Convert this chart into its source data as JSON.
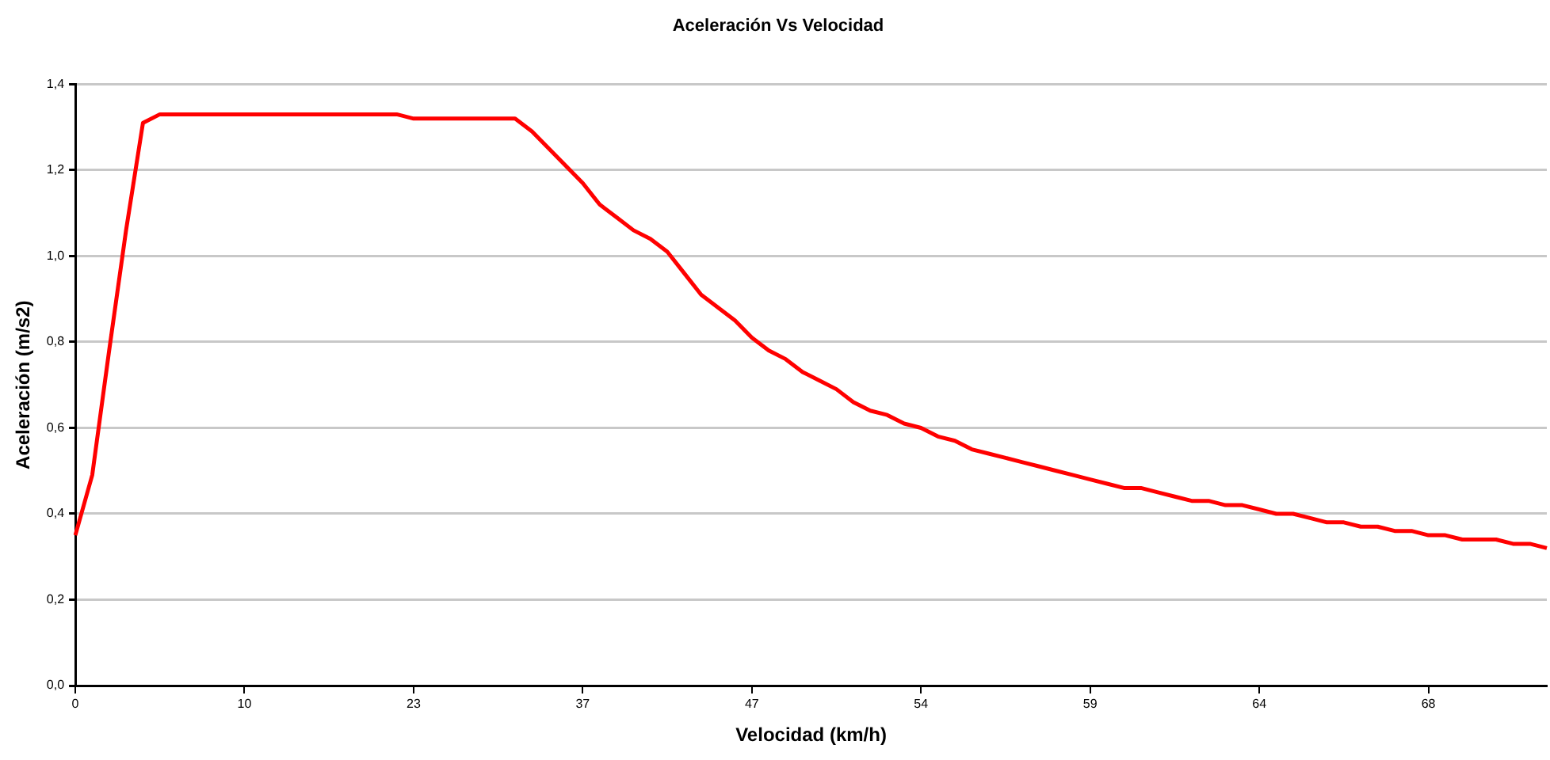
{
  "chart_data": {
    "type": "line",
    "title": "Aceleración Vs Velocidad",
    "xlabel": "Velocidad (km/h)",
    "ylabel": "Aceleración (m/s2)",
    "categories": [
      "0",
      null,
      null,
      null,
      null,
      null,
      null,
      null,
      null,
      null,
      "10",
      null,
      null,
      null,
      null,
      null,
      null,
      null,
      null,
      null,
      "23",
      null,
      null,
      null,
      null,
      null,
      null,
      null,
      null,
      null,
      "37",
      null,
      null,
      null,
      null,
      null,
      null,
      null,
      null,
      null,
      "47",
      null,
      null,
      null,
      null,
      null,
      null,
      null,
      null,
      null,
      "54",
      null,
      null,
      null,
      null,
      null,
      null,
      null,
      null,
      null,
      "59",
      null,
      null,
      null,
      null,
      null,
      null,
      null,
      null,
      null,
      "64",
      null,
      null,
      null,
      null,
      null,
      null,
      null,
      null,
      null,
      "68",
      null,
      null,
      null,
      null,
      null,
      null,
      null
    ],
    "series": [
      {
        "color": "#ff0000",
        "values": [
          0.35,
          0.49,
          0.78,
          1.06,
          1.31,
          1.33,
          1.33,
          1.33,
          1.33,
          1.33,
          1.33,
          1.33,
          1.33,
          1.33,
          1.33,
          1.33,
          1.33,
          1.33,
          1.33,
          1.33,
          1.32,
          1.32,
          1.32,
          1.32,
          1.32,
          1.32,
          1.32,
          1.29,
          1.25,
          1.21,
          1.17,
          1.12,
          1.09,
          1.06,
          1.04,
          1.01,
          0.96,
          0.91,
          0.88,
          0.85,
          0.81,
          0.78,
          0.76,
          0.73,
          0.71,
          0.69,
          0.66,
          0.64,
          0.63,
          0.61,
          0.6,
          0.58,
          0.57,
          0.55,
          0.54,
          0.53,
          0.52,
          0.51,
          0.5,
          0.49,
          0.48,
          0.47,
          0.46,
          0.46,
          0.45,
          0.44,
          0.43,
          0.43,
          0.42,
          0.42,
          0.41,
          0.4,
          0.4,
          0.39,
          0.38,
          0.38,
          0.37,
          0.37,
          0.36,
          0.36,
          0.35,
          0.35,
          0.34,
          0.34,
          0.34,
          0.33,
          0.33,
          0.32
        ]
      }
    ],
    "ylim": [
      0,
      1.4
    ],
    "yticks": [
      {
        "value": 0,
        "label": "0,0"
      },
      {
        "value": 0.2,
        "label": "0,2"
      },
      {
        "value": 0.4,
        "label": "0,4"
      },
      {
        "value": 0.6,
        "label": "0,6"
      },
      {
        "value": 0.8,
        "label": "0,8"
      },
      {
        "value": 1,
        "label": "1,0"
      },
      {
        "value": 1.2,
        "label": "1,2"
      },
      {
        "value": 1.4,
        "label": "1,4"
      }
    ],
    "grid": "y",
    "legend": false,
    "marker": "none",
    "line_style": "solid"
  }
}
